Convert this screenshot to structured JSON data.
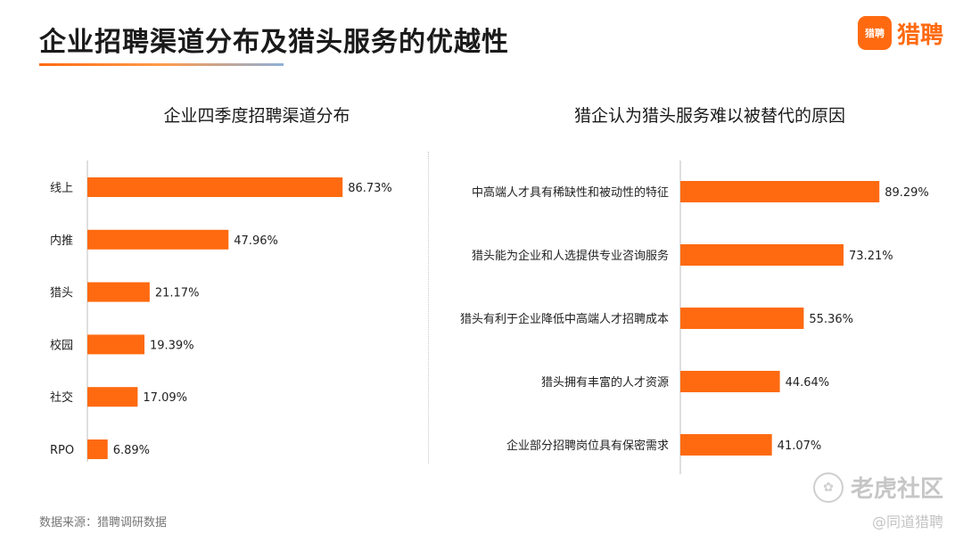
{
  "header": {
    "title": "企业招聘渠道分布及猎头服务的优越性",
    "logo_icon_text": "猎聘",
    "logo_text": "猎聘"
  },
  "footer": {
    "source": "数据来源：猎聘调研数据",
    "watermark": "老虎社区",
    "handle": "@同道猎聘"
  },
  "colors": {
    "bar": "#FF6A10",
    "axis": "#bfbfbf",
    "brand": "#FF6A10"
  },
  "chart_data": [
    {
      "type": "bar",
      "orientation": "horizontal",
      "title": "企业四季度招聘渠道分布",
      "categories": [
        "线上",
        "内推",
        "猎头",
        "校园",
        "社交",
        "RPO"
      ],
      "values": [
        86.73,
        47.96,
        21.17,
        19.39,
        17.09,
        6.89
      ],
      "labels": [
        "86.73%",
        "47.96%",
        "21.17%",
        "19.39%",
        "17.09%",
        "6.89%"
      ],
      "xlim": [
        0,
        100
      ]
    },
    {
      "type": "bar",
      "orientation": "horizontal",
      "title": "猎企认为猎头服务难以被替代的原因",
      "categories": [
        "中高端人才具有稀缺性和被动性的特征",
        "猎头能为企业和人选提供专业咨询服务",
        "猎头有利于企业降低中高端人才招聘成本",
        "猎头拥有丰富的人才资源",
        "企业部分招聘岗位具有保密需求"
      ],
      "values": [
        89.29,
        73.21,
        55.36,
        44.64,
        41.07
      ],
      "labels": [
        "89.29%",
        "73.21%",
        "55.36%",
        "44.64%",
        "41.07%"
      ],
      "xlim": [
        0,
        100
      ]
    }
  ]
}
